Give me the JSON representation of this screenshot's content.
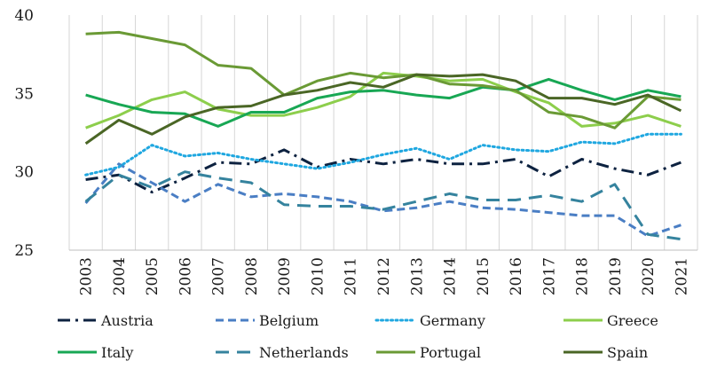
{
  "chart_data": {
    "type": "line",
    "title": "",
    "xlabel": "",
    "ylabel": "",
    "ylim": [
      25,
      40
    ],
    "yticks": [
      25,
      30,
      35,
      40
    ],
    "grid": "vertical",
    "legend_position": "bottom",
    "categories": [
      "2003",
      "2004",
      "2005",
      "2006",
      "2007",
      "2008",
      "2009",
      "2010",
      "2011",
      "2012",
      "2013",
      "2014",
      "2015",
      "2016",
      "2017",
      "2018",
      "2019",
      "2020",
      "2021"
    ],
    "series": [
      {
        "name": "Austria",
        "color": "#0d2240",
        "style": "dashdot",
        "values": [
          29.5,
          29.8,
          28.7,
          29.6,
          30.6,
          30.5,
          31.4,
          30.3,
          30.8,
          30.5,
          30.8,
          30.5,
          30.5,
          30.8,
          29.7,
          30.8,
          30.2,
          29.8,
          30.6
        ]
      },
      {
        "name": "Belgium",
        "color": "#4a7ec4",
        "style": "dashed",
        "values": [
          28.0,
          30.5,
          29.3,
          28.1,
          29.2,
          28.4,
          28.6,
          28.4,
          28.1,
          27.5,
          27.7,
          28.1,
          27.7,
          27.6,
          27.4,
          27.2,
          27.2,
          25.9,
          26.6
        ]
      },
      {
        "name": "Germany",
        "color": "#1fa7e0",
        "style": "dotted",
        "values": [
          29.8,
          30.3,
          31.7,
          31.0,
          31.2,
          30.8,
          30.5,
          30.2,
          30.6,
          31.1,
          31.5,
          30.8,
          31.7,
          31.4,
          31.3,
          31.9,
          31.8,
          32.4,
          32.4
        ]
      },
      {
        "name": "Greece",
        "color": "#8dce4c",
        "style": "solid",
        "values": [
          32.8,
          33.6,
          34.6,
          35.1,
          34.0,
          33.6,
          33.6,
          34.1,
          34.8,
          36.3,
          36.1,
          35.8,
          35.9,
          35.1,
          34.4,
          32.9,
          33.1,
          33.6,
          32.9
        ]
      },
      {
        "name": "Italy",
        "color": "#18a754",
        "style": "solid",
        "values": [
          34.9,
          34.3,
          33.8,
          33.7,
          32.9,
          33.8,
          33.8,
          34.7,
          35.1,
          35.2,
          34.9,
          34.7,
          35.4,
          35.2,
          35.9,
          35.2,
          34.6,
          35.2,
          34.8
        ]
      },
      {
        "name": "Netherlands",
        "color": "#35839e",
        "style": "longdash",
        "values": [
          28.1,
          29.8,
          29.0,
          30.0,
          29.6,
          29.3,
          27.9,
          27.8,
          27.8,
          27.6,
          28.1,
          28.6,
          28.2,
          28.2,
          28.5,
          28.1,
          29.2,
          26.0,
          25.7
        ]
      },
      {
        "name": "Portugal",
        "color": "#6a9a35",
        "style": "solid",
        "values": [
          38.8,
          38.9,
          38.5,
          38.1,
          36.8,
          36.6,
          34.9,
          35.8,
          36.3,
          36.0,
          36.2,
          35.6,
          35.5,
          35.2,
          33.8,
          33.5,
          32.8,
          34.8,
          34.6
        ]
      },
      {
        "name": "Spain",
        "color": "#4a6625",
        "style": "solid",
        "values": [
          31.8,
          33.3,
          32.4,
          33.5,
          34.1,
          34.2,
          34.9,
          35.2,
          35.7,
          35.4,
          36.2,
          36.1,
          36.2,
          35.8,
          34.7,
          34.7,
          34.3,
          34.9,
          33.9
        ]
      }
    ]
  }
}
